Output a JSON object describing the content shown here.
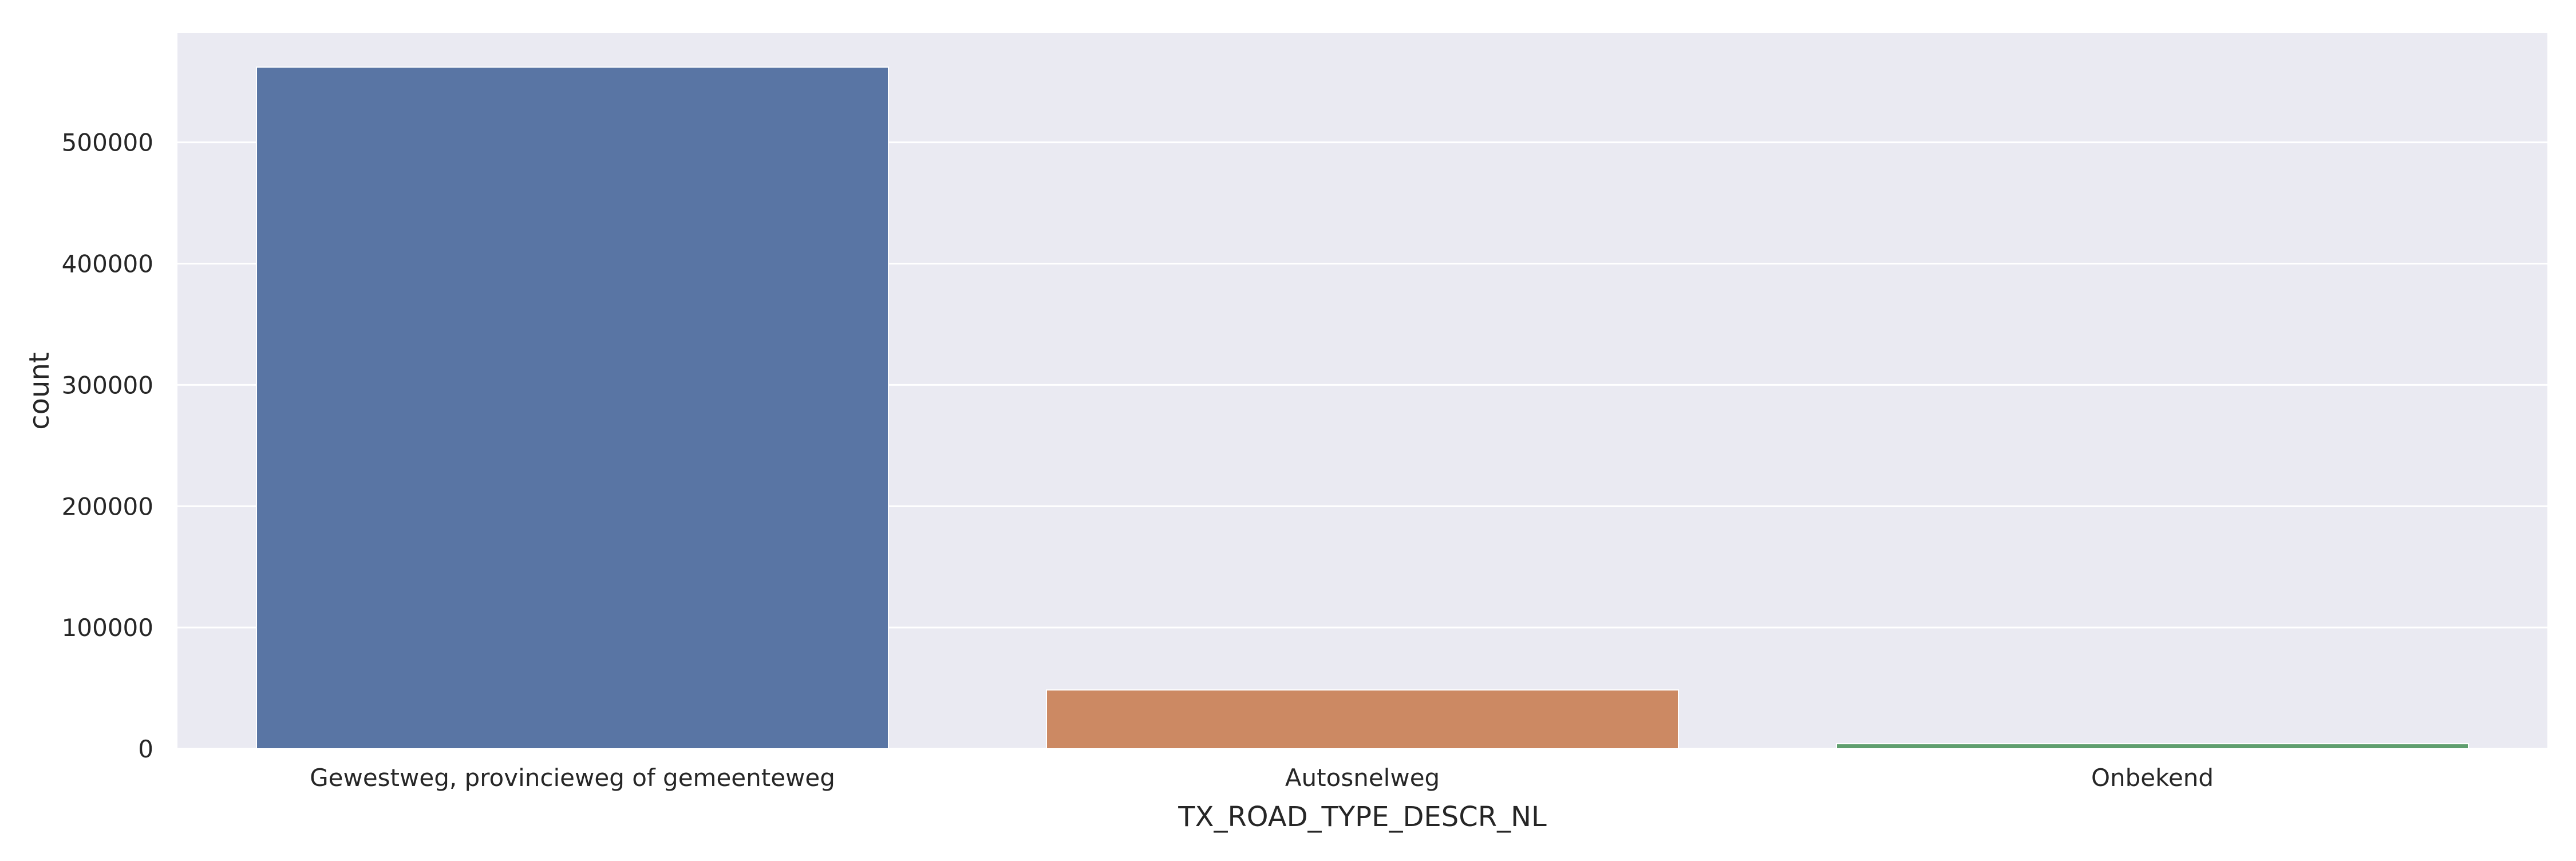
{
  "chart_data": {
    "type": "bar",
    "title": "",
    "xlabel": "TX_ROAD_TYPE_DESCR_NL",
    "ylabel": "count",
    "categories": [
      "Gewestweg, provincieweg of gemeenteweg",
      "Autosnelweg",
      "Onbekend"
    ],
    "values": [
      562000,
      48500,
      4200
    ],
    "ylim": [
      0,
      590000
    ],
    "yticks": [
      0,
      100000,
      200000,
      300000,
      400000,
      500000
    ],
    "ytick_labels": [
      "0",
      "100000",
      "200000",
      "300000",
      "400000",
      "500000"
    ],
    "grid": true,
    "legend": "none",
    "colors": [
      "#5975a4",
      "#cc8963",
      "#5f9e6e"
    ],
    "background": "#eaeaf2",
    "grid_color": "#ffffff"
  }
}
